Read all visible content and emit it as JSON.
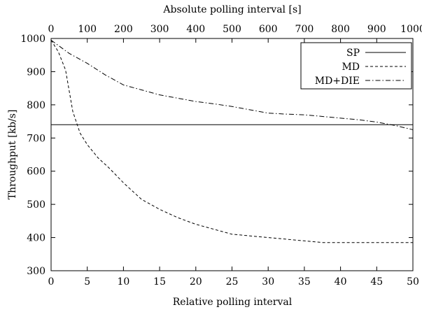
{
  "chart_data": {
    "type": "line",
    "title": "",
    "xlabel": "Relative polling interval",
    "ylabel": "Throughput [kb/s]",
    "x2label": "Absolute polling interval [s]",
    "xlim": [
      0,
      50
    ],
    "ylim": [
      300,
      1000
    ],
    "x2lim": [
      0,
      1000
    ],
    "x_ticks": [
      0,
      5,
      10,
      15,
      20,
      25,
      30,
      35,
      40,
      45,
      50
    ],
    "y_ticks": [
      300,
      400,
      500,
      600,
      700,
      800,
      900,
      1000
    ],
    "x2_ticks": [
      0,
      100,
      200,
      300,
      400,
      500,
      600,
      700,
      800,
      900,
      1000
    ],
    "legend_position": "top-right",
    "grid": false,
    "series": [
      {
        "name": "SP",
        "style": "solid",
        "x": [
          0,
          50
        ],
        "y": [
          740,
          740
        ]
      },
      {
        "name": "MD",
        "style": "dashed",
        "x": [
          0,
          1,
          2,
          3,
          4,
          5,
          6.5,
          8,
          10,
          12.5,
          15,
          17.5,
          20,
          22.5,
          25,
          30,
          35,
          37.5,
          40,
          45,
          50
        ],
        "y": [
          995,
          960,
          905,
          780,
          715,
          680,
          640,
          610,
          565,
          515,
          485,
          460,
          440,
          425,
          410,
          400,
          390,
          385,
          385,
          385,
          385
        ]
      },
      {
        "name": "MD+DIE",
        "style": "dashdot",
        "x": [
          0,
          2.5,
          5,
          7.5,
          10,
          12.5,
          15,
          17.5,
          20,
          22.5,
          25,
          27.5,
          30,
          32.5,
          35,
          37.5,
          40,
          42.5,
          45,
          47.5,
          50
        ],
        "y": [
          995,
          955,
          925,
          890,
          860,
          845,
          830,
          820,
          810,
          803,
          795,
          785,
          775,
          772,
          770,
          765,
          760,
          755,
          748,
          738,
          725
        ]
      }
    ]
  }
}
